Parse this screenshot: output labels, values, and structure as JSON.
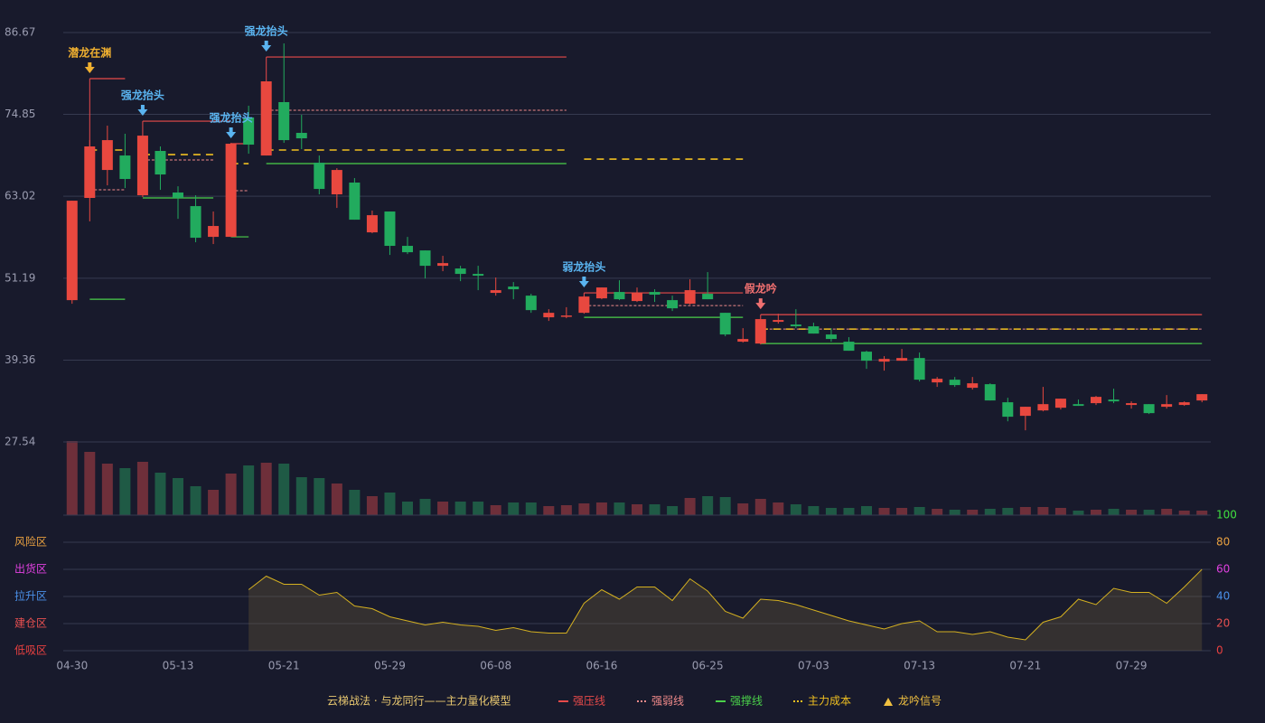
{
  "chart_data": [
    {
      "type": "candlestick",
      "categories": [
        "04-30",
        null,
        null,
        null,
        null,
        null,
        "05-13",
        null,
        null,
        null,
        null,
        null,
        "05-21",
        null,
        null,
        null,
        null,
        null,
        "05-29",
        null,
        null,
        null,
        null,
        null,
        "06-08",
        null,
        null,
        null,
        null,
        null,
        "06-16",
        null,
        null,
        null,
        null,
        null,
        "06-25",
        null,
        null,
        null,
        null,
        null,
        "07-03",
        null,
        null,
        null,
        null,
        null,
        "07-13",
        null,
        null,
        null,
        null,
        null,
        "07-21",
        null,
        null,
        null,
        null,
        null,
        "07-29",
        null,
        null,
        null,
        null
      ],
      "open": [
        48.02,
        62.78,
        66.82,
        68.91,
        63.17,
        69.57,
        63.56,
        61.6,
        57.16,
        57.16,
        74.4,
        68.91,
        76.62,
        72.18,
        67.87,
        63.3,
        65.0,
        57.81,
        60.82,
        55.86,
        55.2,
        52.98,
        52.59,
        51.81,
        49.07,
        49.98,
        48.67,
        45.54,
        45.67,
        46.19,
        48.28,
        49.2,
        47.89,
        49.2,
        48.02,
        47.5,
        48.94,
        46.19,
        42.02,
        41.75,
        44.89,
        44.5,
        44.24,
        43.06,
        42.02,
        40.58,
        39.14,
        39.27,
        39.66,
        36.14,
        36.53,
        35.36,
        35.88,
        33.27,
        31.31,
        32.09,
        32.48,
        33.0,
        33.14,
        33.66,
        32.88,
        33.0,
        32.62,
        32.88,
        33.53
      ],
      "close": [
        62.38,
        70.22,
        71.13,
        65.52,
        71.78,
        66.17,
        62.78,
        57.03,
        58.73,
        70.61,
        70.48,
        79.62,
        71.13,
        71.39,
        64.08,
        66.82,
        59.64,
        60.29,
        55.86,
        54.94,
        52.98,
        53.37,
        51.81,
        51.55,
        49.46,
        49.59,
        46.58,
        46.19,
        45.8,
        48.54,
        49.85,
        48.15,
        49.07,
        48.81,
        46.84,
        49.46,
        48.15,
        43.06,
        42.41,
        45.28,
        45.15,
        44.24,
        43.19,
        42.41,
        40.71,
        39.27,
        39.53,
        39.66,
        36.53,
        36.66,
        35.75,
        36.01,
        33.53,
        31.18,
        32.62,
        33.0,
        33.79,
        32.75,
        34.05,
        33.4,
        33.14,
        31.7,
        33.0,
        33.27,
        34.44
      ],
      "high": [
        62.38,
        71.13,
        73.22,
        72.05,
        71.78,
        70.22,
        64.47,
        63.17,
        60.82,
        70.74,
        76.1,
        79.62,
        85.1,
        74.79,
        68.91,
        67.08,
        65.65,
        60.95,
        60.82,
        57.16,
        55.2,
        54.42,
        52.98,
        52.98,
        51.29,
        50.63,
        48.94,
        46.71,
        47.0,
        48.67,
        49.85,
        50.89,
        49.85,
        49.59,
        48.67,
        51.03,
        52.07,
        46.19,
        43.97,
        45.28,
        46.06,
        46.71,
        44.76,
        43.97,
        42.67,
        40.71,
        39.93,
        40.97,
        40.45,
        36.92,
        36.92,
        36.92,
        36.01,
        33.92,
        32.62,
        35.49,
        33.79,
        33.66,
        34.18,
        35.23,
        33.4,
        33.0,
        34.31,
        33.4,
        34.44
      ],
      "low": [
        47.5,
        59.4,
        64.6,
        64.21,
        62.91,
        63.95,
        59.77,
        56.38,
        56.12,
        57.16,
        69.17,
        68.91,
        70.74,
        69.83,
        63.3,
        61.34,
        59.64,
        57.68,
        54.55,
        54.68,
        51.15,
        52.2,
        50.76,
        49.46,
        48.67,
        48.15,
        46.19,
        45.02,
        45.41,
        46.06,
        48.15,
        48.02,
        47.76,
        47.76,
        46.45,
        47.37,
        48.15,
        42.8,
        41.89,
        41.62,
        44.63,
        43.97,
        43.19,
        42.02,
        40.71,
        38.1,
        37.84,
        39.27,
        36.27,
        35.49,
        35.49,
        35.1,
        33.53,
        30.52,
        29.22,
        31.96,
        32.22,
        32.75,
        32.88,
        33.14,
        32.35,
        31.57,
        32.35,
        32.75,
        33.27
      ],
      "up_color": "#e8483f",
      "down_color": "#22ab5e",
      "ylim": [
        27.54,
        86.67
      ],
      "yticks": [
        27.54,
        39.36,
        51.19,
        63.02,
        74.85,
        86.67
      ],
      "grid": true,
      "levels": [
        {
          "name": "强压线",
          "color": "#e84a4a",
          "dashed": false,
          "segments": [
            {
              "start": 1,
              "end": 3,
              "value": 80.01
            },
            {
              "start": 4,
              "end": 9,
              "value": 73.87
            },
            {
              "start": 9,
              "end": 10,
              "value": 70.61
            },
            {
              "start": 11,
              "end": 28,
              "value": 83.14
            },
            {
              "start": 29,
              "end": 38,
              "value": 49.07
            },
            {
              "start": 39,
              "end": 64,
              "value": 45.93
            }
          ]
        },
        {
          "name": "强弱线",
          "color": "#f08a8a",
          "dashed": true,
          "segments": [
            {
              "start": 1,
              "end": 3,
              "value": 63.95
            },
            {
              "start": 4,
              "end": 8,
              "value": 68.26
            },
            {
              "start": 9,
              "end": 10,
              "value": 63.82
            },
            {
              "start": 11,
              "end": 28,
              "value": 75.44
            },
            {
              "start": 29,
              "end": 38,
              "value": 47.24
            },
            {
              "start": 39,
              "end": 64,
              "value": 43.84
            }
          ]
        },
        {
          "name": "强撑线",
          "color": "#4ad04a",
          "dashed": false,
          "segments": [
            {
              "start": 1,
              "end": 3,
              "value": 48.15
            },
            {
              "start": 4,
              "end": 8,
              "value": 62.78
            },
            {
              "start": 9,
              "end": 10,
              "value": 57.16
            },
            {
              "start": 11,
              "end": 28,
              "value": 67.74
            },
            {
              "start": 29,
              "end": 38,
              "value": 45.54
            },
            {
              "start": 39,
              "end": 64,
              "value": 41.75
            }
          ]
        },
        {
          "name": "主力成本",
          "color": "#f0c020",
          "dashed": true,
          "segments": [
            {
              "start": 1,
              "end": 3,
              "value": 69.7
            },
            {
              "start": 4,
              "end": 8,
              "value": 69.04
            },
            {
              "start": 9,
              "end": 10,
              "value": 67.74
            },
            {
              "start": 11,
              "end": 28,
              "value": 69.7
            },
            {
              "start": 29,
              "end": 38,
              "value": 68.39
            },
            {
              "start": 39,
              "end": 64,
              "value": 43.84
            }
          ]
        }
      ],
      "signals": {
        "name": "龙吟信号",
        "color": "#f0c040",
        "items": [
          {
            "index": 1,
            "label": "潜龙在渊",
            "color": "#f0b030"
          },
          {
            "index": 4,
            "label": "强龙抬头",
            "color": "#5ab4f0"
          },
          {
            "index": 9,
            "label": "强龙抬头",
            "color": "#5ab4f0"
          },
          {
            "index": 11,
            "label": "强龙抬头",
            "color": "#5ab4f0"
          },
          {
            "index": 29,
            "label": "弱龙抬头",
            "color": "#5ab4f0"
          },
          {
            "index": 39,
            "label": "假龙吟",
            "color": "#f07070"
          }
        ]
      },
      "model_title": "云梯战法 · 与龙同行——主力量化模型"
    },
    {
      "type": "bar",
      "values": [
        82,
        70,
        57,
        52,
        59,
        47,
        41,
        32,
        28,
        46,
        55,
        58,
        57,
        42,
        41,
        35,
        28,
        21,
        25,
        15,
        18,
        15,
        15,
        15,
        11,
        14,
        14,
        10,
        11,
        13,
        14,
        14,
        12,
        12,
        10,
        19,
        21,
        20,
        13,
        18,
        14,
        12,
        10,
        8,
        8,
        10,
        8,
        8,
        9,
        7,
        6,
        6,
        7,
        8,
        9,
        9,
        8,
        5,
        6,
        7,
        6,
        6,
        7,
        5,
        5
      ],
      "up_color": "#6e2f3a",
      "down_color": "#1f5a45"
    },
    {
      "type": "area",
      "values": [
        null,
        null,
        null,
        null,
        null,
        null,
        null,
        null,
        null,
        null,
        45,
        55,
        49,
        49,
        41,
        43,
        33,
        31,
        25,
        22,
        19,
        21,
        19,
        18,
        15,
        17,
        14,
        13,
        13,
        35,
        45,
        38,
        47,
        47,
        37,
        53,
        44,
        29,
        24,
        38,
        37,
        34,
        30,
        26,
        22,
        19,
        16,
        20,
        22,
        14,
        14,
        12,
        14,
        10,
        8,
        21,
        25,
        38,
        34,
        46,
        43,
        43,
        35,
        47,
        60
      ],
      "color": "#d4b020",
      "fill": "rgba(120,100,60,0.3)",
      "ylim": [
        0,
        100
      ],
      "yticks": [
        0,
        20,
        40,
        60,
        80,
        100
      ],
      "ytick_colors": [
        "#e84040",
        "#e85050",
        "#4a90e8",
        "#e040e0",
        "#e8a040",
        "#40e040"
      ],
      "zones": [
        {
          "label": "风险区",
          "value": 80,
          "color": "#e8a040"
        },
        {
          "label": "出货区",
          "value": 60,
          "color": "#e040e0"
        },
        {
          "label": "拉升区",
          "value": 40,
          "color": "#4a90e8"
        },
        {
          "label": "建仓区",
          "value": 20,
          "color": "#e85050"
        },
        {
          "label": "低吸区",
          "value": 0,
          "color": "#e84040"
        }
      ]
    }
  ]
}
